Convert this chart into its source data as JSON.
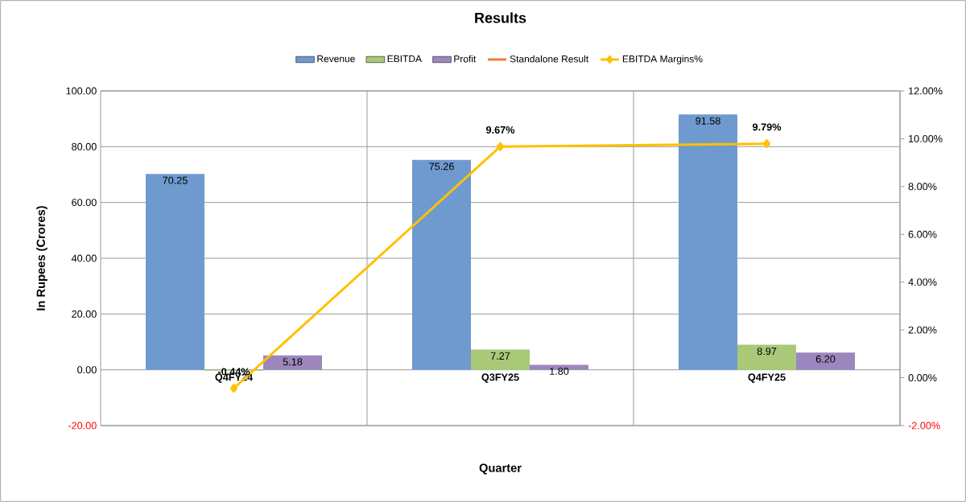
{
  "chart_data": {
    "type": "bar",
    "title": "Results",
    "xlabel": "Quarter",
    "ylabel": "In Rupees (Crores)",
    "categories": [
      "Q4FY24",
      "Q3FY25",
      "Q4FY25"
    ],
    "series": [
      {
        "name": "Revenue",
        "color": "#6f9ad0",
        "values": [
          70.25,
          75.26,
          91.58
        ],
        "value_labels": [
          "70.25",
          "75.26",
          "91.58"
        ]
      },
      {
        "name": "EBITDA",
        "color": "#a9c878",
        "values": [
          -0.31,
          7.27,
          8.97
        ],
        "value_labels": [
          null,
          "7.27",
          "8.97"
        ]
      },
      {
        "name": "Profit",
        "color": "#9d86bd",
        "values": [
          5.18,
          1.8,
          6.2
        ],
        "value_labels": [
          "5.18",
          "1.80",
          "6.20"
        ]
      },
      {
        "name": "Standalone Result",
        "type": "line",
        "color": "#ed7d31",
        "values": [
          null,
          null,
          null
        ]
      },
      {
        "name": "EBITDA Margins%",
        "type": "line",
        "axis": "y2",
        "color": "#ffc000",
        "marker": "diamond",
        "values": [
          -0.44,
          9.67,
          9.79
        ],
        "value_labels": [
          "-0.44%",
          "9.67%",
          "9.79%"
        ]
      }
    ],
    "ylim": [
      -20,
      100
    ],
    "yticks": [
      {
        "value": -20,
        "label": "-20.00"
      },
      {
        "value": 0,
        "label": "0.00"
      },
      {
        "value": 20,
        "label": "20.00"
      },
      {
        "value": 40,
        "label": "40.00"
      },
      {
        "value": 60,
        "label": "60.00"
      },
      {
        "value": 80,
        "label": "80.00"
      },
      {
        "value": 100,
        "label": "100.00"
      }
    ],
    "y2lim": [
      -2,
      12
    ],
    "y2ticks": [
      {
        "value": -2,
        "label": "-2.00%"
      },
      {
        "value": 0,
        "label": "0.00%"
      },
      {
        "value": 2,
        "label": "2.00%"
      },
      {
        "value": 4,
        "label": "4.00%"
      },
      {
        "value": 6,
        "label": "6.00%"
      },
      {
        "value": 8,
        "label": "8.00%"
      },
      {
        "value": 10,
        "label": "10.00%"
      },
      {
        "value": 12,
        "label": "12.00%"
      }
    ],
    "grid": true,
    "legend": "top"
  }
}
